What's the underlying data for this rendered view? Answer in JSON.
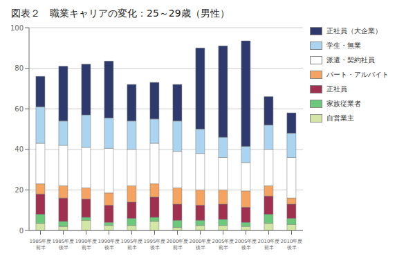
{
  "chart_data": {
    "type": "bar",
    "title": "図表２　職業キャリアの変化：25～29歳（男性）",
    "stacked": true,
    "grid": true,
    "legend": "right",
    "categories": [
      "1985年度\n前半",
      "1985年度\n後半",
      "1990年度\n前半",
      "1990年度\n後半",
      "1995年度\n前半",
      "1995年度\n後半",
      "2000年度\n前半",
      "2000年度\n後半",
      "2005年度\n前半",
      "2005年度\n後半",
      "2010年度\n前半",
      "2010年度\n後半"
    ],
    "series": [
      {
        "name": "自営業主",
        "color": "#d4e6a5",
        "values": [
          3.5,
          2.0,
          5.0,
          2.5,
          2.5,
          4.5,
          1.5,
          2.5,
          2.5,
          2.0,
          3.5,
          3.0
        ]
      },
      {
        "name": "家族従業者",
        "color": "#6cc87a",
        "values": [
          4.5,
          2.5,
          1.5,
          1.5,
          3.5,
          2.0,
          3.5,
          2.5,
          3.0,
          2.0,
          4.5,
          3.0
        ]
      },
      {
        "name": "正社員",
        "color": "#a03050",
        "values": [
          10.0,
          11.5,
          9.0,
          8.5,
          8.0,
          10.0,
          8.0,
          7.5,
          7.5,
          7.5,
          9.0,
          7.0
        ]
      },
      {
        "name": "パート・アルバイト",
        "color": "#f4a460",
        "values": [
          5.0,
          6.0,
          5.5,
          6.0,
          8.0,
          6.5,
          8.0,
          7.5,
          7.0,
          8.0,
          5.0,
          3.0
        ]
      },
      {
        "name": "派遣・契約社員",
        "color": "#ffffff",
        "values": [
          20.0,
          20.0,
          20.0,
          22.0,
          18.0,
          20.0,
          18.0,
          18.0,
          16.0,
          14.0,
          18.0,
          20.0
        ]
      },
      {
        "name": "学生・無業",
        "color": "#aad4f0",
        "values": [
          18.0,
          12.0,
          16.0,
          15.0,
          14.0,
          12.0,
          15.0,
          12.0,
          10.0,
          8.0,
          12.0,
          12.0
        ]
      },
      {
        "name": "正社員（大企業）",
        "color": "#2d3a6b",
        "values": [
          15.0,
          27.0,
          25.0,
          28.0,
          18.0,
          18.0,
          18.0,
          40.0,
          45.0,
          52.0,
          14.0,
          10.0
        ]
      }
    ],
    "ylim": [
      0,
      100
    ],
    "yticks": [
      0,
      20,
      40,
      60,
      80,
      100
    ]
  }
}
